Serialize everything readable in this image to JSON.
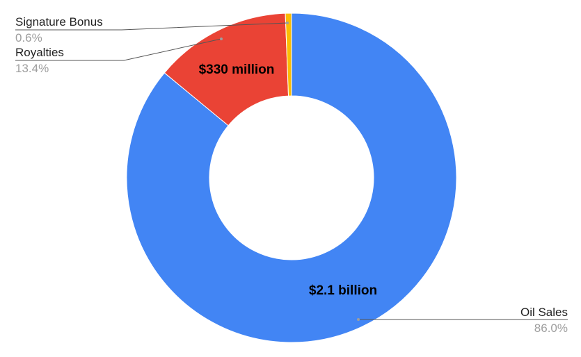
{
  "chart_data": {
    "type": "pie",
    "variant": "donut",
    "slices": [
      {
        "label": "Oil Sales",
        "percent_label": "86.0%",
        "value": 86.0,
        "inside_label": "$2.1 billion",
        "color": "#4285f4"
      },
      {
        "label": "Royalties",
        "percent_label": "13.4%",
        "value": 13.4,
        "inside_label": "$330 million",
        "color": "#ea4335"
      },
      {
        "label": "Signature Bonus",
        "percent_label": "0.6%",
        "value": 0.6,
        "inside_label": "",
        "color": "#fbbc04"
      }
    ],
    "legend": "none",
    "title": ""
  }
}
